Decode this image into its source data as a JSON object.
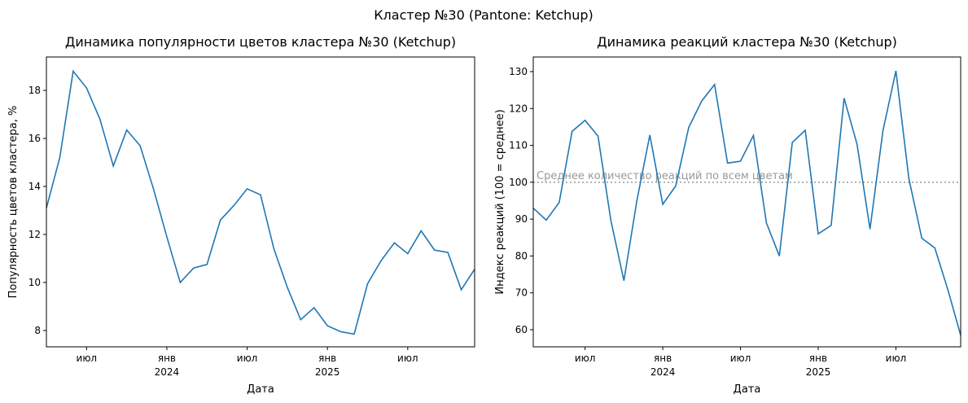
{
  "title": "Кластер №30 (Pantone: Ketchup)",
  "chart_data": [
    {
      "type": "line",
      "title": "Динамика популярности цветов кластера №30 (Ketchup)",
      "xlabel": "Дата",
      "ylabel": "Популярность цветов кластера, %",
      "x": [
        "2023-04",
        "2023-05",
        "2023-06",
        "2023-07",
        "2023-08",
        "2023-09",
        "2023-10",
        "2023-11",
        "2023-12",
        "2024-01",
        "2024-02",
        "2024-03",
        "2024-04",
        "2024-05",
        "2024-06",
        "2024-07",
        "2024-08",
        "2024-09",
        "2024-10",
        "2024-11",
        "2024-12",
        "2025-01",
        "2025-02",
        "2025-03",
        "2025-04",
        "2025-05",
        "2025-06",
        "2025-07",
        "2025-08",
        "2025-09",
        "2025-10",
        "2025-11",
        "2025-12"
      ],
      "series": [
        {
          "name": "Популярность",
          "color": "#1f77b4",
          "values": [
            13.1,
            15.2,
            18.8,
            18.1,
            16.8,
            14.85,
            16.35,
            15.7,
            13.9,
            11.9,
            10.0,
            10.6,
            10.75,
            12.6,
            13.2,
            13.9,
            13.65,
            11.4,
            9.8,
            8.45,
            8.95,
            8.2,
            7.95,
            7.85,
            9.95,
            10.9,
            11.65,
            11.2,
            12.15,
            11.35,
            11.25,
            9.7,
            10.55
          ]
        }
      ],
      "xlim": [
        "2023-04",
        "2025-12"
      ],
      "xticks": [
        {
          "value": "2023-07",
          "label": "июл"
        },
        {
          "value": "2024-01",
          "label": "янв\n2024"
        },
        {
          "value": "2024-07",
          "label": "июл"
        },
        {
          "value": "2025-01",
          "label": "янв\n2025"
        },
        {
          "value": "2025-07",
          "label": "июл"
        }
      ],
      "ylim": [
        7.32,
        19.39
      ],
      "yticks": [
        8,
        10,
        12,
        14,
        16,
        18
      ],
      "grid": false
    },
    {
      "type": "line",
      "title": "Динамика реакций кластера №30 (Ketchup)",
      "xlabel": "Дата",
      "ylabel": "Индекс реакций (100 = среднее)",
      "x": [
        "2023-03",
        "2023-04",
        "2023-05",
        "2023-06",
        "2023-07",
        "2023-08",
        "2023-09",
        "2023-10",
        "2023-11",
        "2023-12",
        "2024-01",
        "2024-02",
        "2024-03",
        "2024-04",
        "2024-05",
        "2024-06",
        "2024-07",
        "2024-08",
        "2024-09",
        "2024-10",
        "2024-11",
        "2024-12",
        "2025-01",
        "2025-02",
        "2025-03",
        "2025-04",
        "2025-05",
        "2025-06",
        "2025-07",
        "2025-08",
        "2025-09",
        "2025-10",
        "2025-11",
        "2025-12"
      ],
      "series": [
        {
          "name": "Индекс реакций",
          "color": "#1f77b4",
          "values": [
            93,
            89.7,
            94.5,
            113.8,
            116.8,
            112.5,
            89.5,
            73.3,
            95,
            112.8,
            94,
            99,
            114.8,
            122,
            126.5,
            105.2,
            105.7,
            112.7,
            89,
            80,
            110.8,
            114.1,
            86,
            88.3,
            122.8,
            110.3,
            87.3,
            114,
            130.2,
            101,
            84.8,
            82.2,
            71,
            58.5
          ]
        }
      ],
      "hline": {
        "value": 100,
        "label": "Среднее количество реакций по всем цветам",
        "color": "#999999"
      },
      "xlim": [
        "2023-03",
        "2025-12"
      ],
      "xticks": [
        {
          "value": "2023-07",
          "label": "июл"
        },
        {
          "value": "2024-01",
          "label": "янв\n2024"
        },
        {
          "value": "2024-07",
          "label": "июл"
        },
        {
          "value": "2025-01",
          "label": "янв\n2025"
        },
        {
          "value": "2025-07",
          "label": "июл"
        }
      ],
      "ylim": [
        55.36,
        133.97
      ],
      "yticks": [
        60,
        70,
        80,
        90,
        100,
        110,
        120,
        130
      ],
      "grid": false
    }
  ]
}
